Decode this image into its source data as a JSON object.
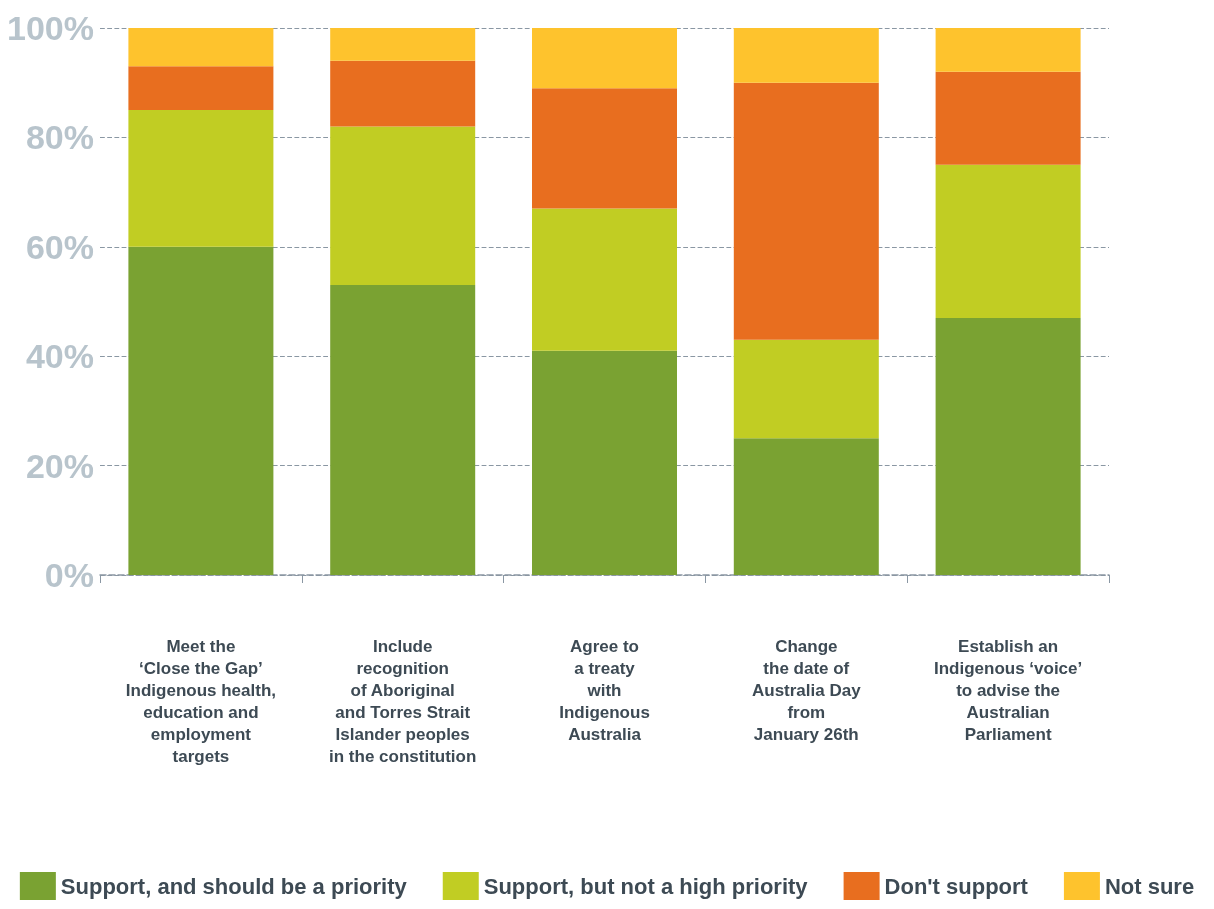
{
  "chart_data": {
    "type": "bar",
    "stacked": true,
    "categories": [
      "Meet the\n‘Close the Gap’\nIndigenous health,\neducation and\nemployment\ntargets",
      "Include\nrecognition\nof Aboriginal\nand Torres Strait\nIslander peoples\nin the constitution",
      "Agree to\na treaty\nwith\nIndigenous\nAustralia",
      "Change\nthe date of\nAustralia Day\nfrom\nJanuary 26th",
      "Establish an\nIndigenous ‘voice’\nto advise the\nAustralian\nParliament"
    ],
    "series": [
      {
        "name": "Support, and should be a priority",
        "color": "#7aa232",
        "values": [
          60,
          53,
          41,
          25,
          47
        ]
      },
      {
        "name": "Support, but not a high priority",
        "color": "#c1cd23",
        "values": [
          25,
          29,
          26,
          18,
          28
        ]
      },
      {
        "name": "Don't support",
        "color": "#e86e1f",
        "values": [
          8,
          12,
          22,
          47,
          17
        ]
      },
      {
        "name": "Not sure",
        "color": "#fec32d",
        "values": [
          7,
          6,
          11,
          10,
          8
        ]
      }
    ],
    "ylim": [
      0,
      100
    ],
    "yticks": [
      {
        "value": 0,
        "label": "0%"
      },
      {
        "value": 20,
        "label": "20%"
      },
      {
        "value": 40,
        "label": "40%"
      },
      {
        "value": 60,
        "label": "60%"
      },
      {
        "value": 80,
        "label": "80%"
      },
      {
        "value": 100,
        "label": "100%"
      }
    ],
    "grid": "y",
    "legend": "bottom"
  }
}
